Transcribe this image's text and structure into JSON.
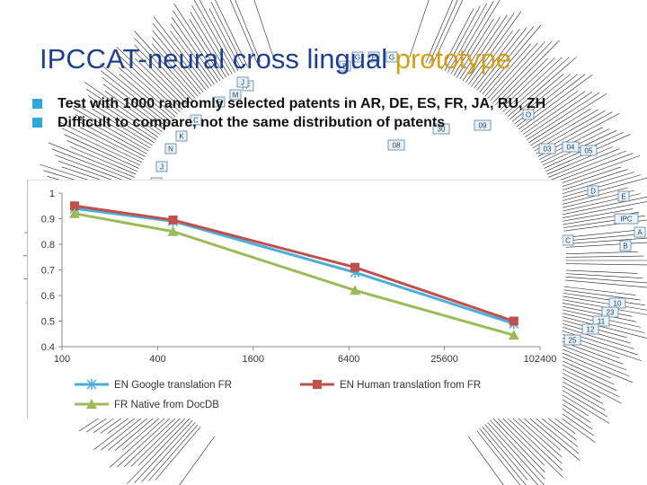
{
  "slide": {
    "title_main": "IPCCAT-neural cross lingual",
    "title_accent": "prototype",
    "accent_color": "#d4a017",
    "title_color": "#1f3f8f",
    "bullet_color": "#2ea8d8",
    "bullets": [
      "Test with 1000 randomly selected patents in AR, DE, ES, FR, JA, RU, ZH",
      "Difficult to compare, not the same distribution of patents"
    ]
  },
  "background_tree": {
    "node_labels": [
      "G",
      "F",
      "G",
      "D",
      "E",
      "F",
      "M",
      "J",
      "K",
      "N",
      "C",
      "30",
      "09",
      "08",
      "O",
      "03",
      "04",
      "05",
      "J",
      "H",
      "D",
      "E",
      "IPC",
      "A",
      "C",
      "B",
      "10",
      "23",
      "11",
      "12",
      "25"
    ],
    "highlight_node": "IPC",
    "highlight_color": "#33cc33"
  },
  "chart_data": {
    "type": "line",
    "x_scale": "log",
    "x_ticks": [
      "100",
      "400",
      "1600",
      "6400",
      "25600",
      "102400"
    ],
    "y_ticks": [
      "0.4",
      "0.5",
      "0.6",
      "0.7",
      "0.8",
      "0.9",
      "1"
    ],
    "xlim": [
      100,
      102400
    ],
    "ylim": [
      0.4,
      1.0
    ],
    "grid": false,
    "legend_position": "bottom",
    "series": [
      {
        "name": "EN Google translation FR",
        "color": "#4aaed8",
        "marker": "star",
        "x": [
          120,
          500,
          7000,
          70000
        ],
        "y": [
          0.94,
          0.89,
          0.69,
          0.49
        ]
      },
      {
        "name": "EN Human translation from FR",
        "color": "#c0504d",
        "marker": "square",
        "x": [
          120,
          500,
          7000,
          70000
        ],
        "y": [
          0.95,
          0.895,
          0.71,
          0.5
        ]
      },
      {
        "name": "FR Native from DocDB",
        "color": "#9bbb59",
        "marker": "triangle",
        "x": [
          120,
          500,
          7000,
          70000
        ],
        "y": [
          0.92,
          0.85,
          0.62,
          0.445
        ]
      }
    ]
  }
}
